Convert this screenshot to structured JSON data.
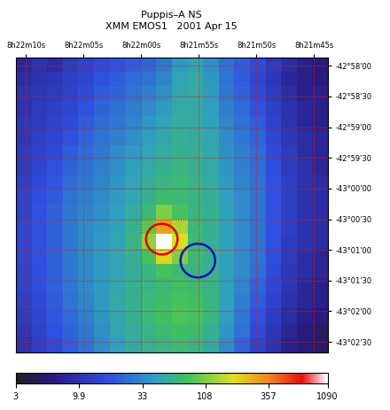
{
  "chart_data": {
    "type": "heatmap",
    "title": "Puppis–A NS",
    "subtitle": "XMM EMOS1   2001 Apr 15",
    "xlim": [
      30130.9,
      30103.8
    ],
    "xticks": [
      {
        "value": 30130,
        "label": "8h22m10s"
      },
      {
        "value": 30125,
        "label": "8h22m05s"
      },
      {
        "value": 30120,
        "label": "8h22m00s"
      },
      {
        "value": 30115,
        "label": "8h21m55s"
      },
      {
        "value": 30110,
        "label": "8h21m50s"
      },
      {
        "value": 30105,
        "label": "8h21m45s"
      }
    ],
    "ylim": [
      -154960.5,
      -154671.75
    ],
    "yticks": [
      {
        "value": -154680,
        "label": "-42°58'00"
      },
      {
        "value": -154710,
        "label": "-42°58'30"
      },
      {
        "value": -154740,
        "label": "-42°59'00"
      },
      {
        "value": -154770,
        "label": "-42°59'30"
      },
      {
        "value": -154800,
        "label": "-43°00'00"
      },
      {
        "value": -154830,
        "label": "-43°00'30"
      },
      {
        "value": -154860,
        "label": "-43°01'00"
      },
      {
        "value": -154890,
        "label": "-43°01'30"
      },
      {
        "value": -154920,
        "label": "-43°02'00"
      },
      {
        "value": -154950,
        "label": "-43°02'30"
      }
    ],
    "grid": true,
    "cells": [
      [
        8,
        10,
        9,
        12,
        14,
        16,
        18,
        20,
        22,
        28,
        40,
        45,
        35,
        25,
        20,
        16,
        12,
        9,
        7,
        6
      ],
      [
        9,
        10,
        11,
        13,
        15,
        18,
        20,
        24,
        26,
        32,
        45,
        50,
        38,
        26,
        20,
        15,
        11,
        8,
        7,
        6
      ],
      [
        10,
        11,
        12,
        14,
        16,
        20,
        22,
        26,
        30,
        36,
        48,
        52,
        40,
        28,
        22,
        16,
        12,
        9,
        7,
        7
      ],
      [
        10,
        12,
        13,
        15,
        18,
        22,
        25,
        30,
        34,
        40,
        50,
        50,
        42,
        30,
        24,
        18,
        13,
        10,
        8,
        7
      ],
      [
        11,
        12,
        14,
        16,
        20,
        24,
        28,
        32,
        38,
        45,
        52,
        50,
        44,
        32,
        26,
        20,
        14,
        10,
        8,
        7
      ],
      [
        11,
        13,
        15,
        18,
        22,
        26,
        30,
        36,
        42,
        48,
        55,
        52,
        46,
        34,
        28,
        22,
        15,
        11,
        9,
        8
      ],
      [
        12,
        14,
        16,
        20,
        24,
        28,
        34,
        40,
        46,
        52,
        58,
        55,
        48,
        36,
        30,
        24,
        16,
        12,
        9,
        8
      ],
      [
        12,
        15,
        18,
        22,
        26,
        30,
        36,
        44,
        50,
        58,
        62,
        58,
        50,
        38,
        30,
        24,
        17,
        12,
        10,
        8
      ],
      [
        13,
        16,
        19,
        24,
        28,
        32,
        38,
        46,
        54,
        62,
        66,
        60,
        52,
        40,
        32,
        26,
        18,
        13,
        10,
        9
      ],
      [
        14,
        17,
        20,
        26,
        30,
        34,
        40,
        48,
        58,
        70,
        68,
        62,
        54,
        42,
        34,
        26,
        18,
        13,
        10,
        9
      ],
      [
        14,
        18,
        22,
        28,
        32,
        36,
        42,
        52,
        66,
        110,
        80,
        64,
        56,
        44,
        34,
        26,
        18,
        13,
        10,
        9
      ],
      [
        15,
        18,
        22,
        28,
        34,
        38,
        44,
        56,
        90,
        300,
        140,
        66,
        56,
        44,
        34,
        26,
        18,
        13,
        10,
        9
      ],
      [
        15,
        18,
        22,
        28,
        34,
        40,
        46,
        60,
        120,
        1090,
        180,
        68,
        56,
        44,
        34,
        26,
        18,
        12,
        10,
        9
      ],
      [
        15,
        18,
        22,
        28,
        34,
        40,
        46,
        56,
        80,
        200,
        110,
        66,
        56,
        44,
        34,
        26,
        17,
        12,
        9,
        8
      ],
      [
        14,
        17,
        22,
        28,
        34,
        40,
        46,
        54,
        62,
        80,
        70,
        64,
        58,
        44,
        34,
        24,
        16,
        11,
        9,
        8
      ],
      [
        14,
        17,
        21,
        27,
        34,
        40,
        48,
        56,
        62,
        68,
        74,
        70,
        60,
        44,
        32,
        22,
        15,
        11,
        8,
        7
      ],
      [
        13,
        16,
        20,
        26,
        32,
        40,
        50,
        58,
        66,
        72,
        80,
        76,
        62,
        44,
        30,
        20,
        14,
        10,
        8,
        7
      ],
      [
        12,
        15,
        19,
        24,
        30,
        38,
        48,
        58,
        66,
        74,
        84,
        80,
        62,
        42,
        28,
        18,
        12,
        9,
        7,
        6
      ],
      [
        11,
        14,
        18,
        22,
        28,
        36,
        46,
        54,
        62,
        70,
        76,
        72,
        56,
        38,
        26,
        16,
        11,
        8,
        6,
        5
      ],
      [
        10,
        13,
        16,
        20,
        26,
        34,
        42,
        50,
        56,
        62,
        66,
        62,
        50,
        34,
        22,
        14,
        10,
        7,
        6,
        5
      ]
    ],
    "colorbar": {
      "range": [
        3,
        1090
      ],
      "ticks": [
        3,
        9.9,
        33,
        108,
        357,
        1090
      ]
    },
    "circles": [
      {
        "center_ra_s": 30118.2,
        "center_dec_arcsec": -154849.5,
        "radius_arcsec": 15,
        "color": "#e00000"
      },
      {
        "center_ra_s": 30115.07,
        "center_dec_arcsec": -154870.5,
        "radius_arcsec": 16.5,
        "color": "#1010c0"
      }
    ]
  }
}
